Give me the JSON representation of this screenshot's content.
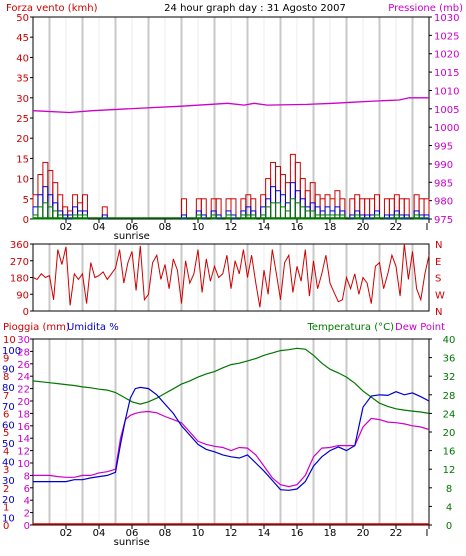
{
  "colors": {
    "wind": "#d00000",
    "pressure": "#cc00cc",
    "humidity": "#0000cc",
    "temperature": "#007700",
    "dewpoint": "#cc00cc",
    "rain": "#d00000",
    "grid_day": "#c8c8c8",
    "axis": "#000000"
  },
  "header": {
    "left_label": "Forza vento (kmh)",
    "title": "24 hour graph day : 31 Agosto 2007",
    "right_label": "Pressione (mb)"
  },
  "x_axis": {
    "tick_labels": [
      "02",
      "04",
      "06",
      "08",
      "10",
      "12",
      "14",
      "16",
      "18",
      "20",
      "22",
      "I"
    ],
    "sunrise_label": "sunrise",
    "sunrise_hour": 5.5
  },
  "chart_data": [
    {
      "type": "line",
      "panel": "wind-pressure",
      "y_ticks_left": [
        0,
        5,
        10,
        15,
        20,
        25,
        30,
        35,
        40,
        45,
        50
      ],
      "y_ticks_right": [
        975,
        980,
        985,
        990,
        995,
        1000,
        1005,
        1010,
        1015,
        1020,
        1025,
        1030
      ],
      "ylim_left": [
        0,
        50
      ],
      "ylim_right": [
        975,
        1030
      ],
      "pressure": {
        "hours": [
          0,
          2.2,
          3.6,
          6.6,
          9.0,
          11.8,
          12.8,
          13.4,
          14.2,
          16.6,
          18.2,
          19.4,
          20.2,
          21.2,
          22.2,
          22.8,
          24
        ],
        "values": [
          1004.5,
          1004.0,
          1004.5,
          1005.2,
          1005.7,
          1006.5,
          1006.0,
          1006.5,
          1006.0,
          1006.2,
          1006.5,
          1006.8,
          1007.0,
          1007.2,
          1007.4,
          1008.0,
          1008.0
        ]
      },
      "wind_gust": {
        "hours": [
          0.0,
          0.3,
          0.6,
          0.9,
          1.2,
          1.5,
          1.8,
          2.1,
          2.4,
          2.7,
          3.0,
          3.3,
          3.6,
          3.9,
          4.2,
          4.5,
          4.8,
          5.1,
          5.4,
          5.7,
          6.0,
          6.3,
          6.6,
          6.9,
          7.2,
          7.5,
          7.8,
          8.1,
          8.4,
          8.7,
          9.0,
          9.3,
          9.6,
          9.9,
          10.2,
          10.5,
          10.8,
          11.1,
          11.4,
          11.7,
          12.0,
          12.3,
          12.6,
          12.9,
          13.2,
          13.5,
          13.8,
          14.1,
          14.4,
          14.7,
          15.0,
          15.3,
          15.6,
          15.9,
          16.2,
          16.5,
          16.8,
          17.1,
          17.4,
          17.7,
          18.0,
          18.3,
          18.6,
          18.9,
          19.2,
          19.5,
          19.8,
          20.1,
          20.4,
          20.7,
          21.0,
          21.3,
          21.6,
          21.9,
          22.2,
          22.5,
          22.8,
          23.1,
          23.4,
          23.7
        ],
        "values": [
          6,
          11,
          14,
          12,
          9,
          6,
          3,
          2,
          6,
          4,
          6,
          0,
          0,
          0,
          3,
          0,
          0,
          0,
          0,
          0,
          0,
          0,
          0,
          0,
          0,
          0,
          0,
          0,
          0,
          0,
          5,
          0,
          0,
          5,
          5,
          0,
          5,
          5,
          0,
          5,
          5,
          0,
          5,
          6,
          5,
          0,
          6,
          10,
          14,
          13,
          11,
          9,
          16,
          14,
          10,
          7,
          9,
          6,
          5,
          6,
          5,
          7,
          5,
          0,
          5,
          6,
          5,
          5,
          5,
          6,
          0,
          5,
          5,
          6,
          5,
          5,
          0,
          6,
          5,
          5
        ]
      },
      "wind_avg": {
        "hours": [
          0.0,
          0.3,
          0.6,
          0.9,
          1.2,
          1.5,
          1.8,
          2.1,
          2.4,
          2.7,
          3.0,
          3.3,
          3.6,
          3.9,
          4.2,
          4.5,
          4.8,
          5.1,
          5.4,
          5.7,
          6.0,
          6.3,
          6.6,
          6.9,
          7.2,
          7.5,
          7.8,
          8.1,
          8.4,
          8.7,
          9.0,
          9.3,
          9.6,
          9.9,
          10.2,
          10.5,
          10.8,
          11.1,
          11.4,
          11.7,
          12.0,
          12.3,
          12.6,
          12.9,
          13.2,
          13.5,
          13.8,
          14.1,
          14.4,
          14.7,
          15.0,
          15.3,
          15.6,
          15.9,
          16.2,
          16.5,
          16.8,
          17.1,
          17.4,
          17.7,
          18.0,
          18.3,
          18.6,
          18.9,
          19.2,
          19.5,
          19.8,
          20.1,
          20.4,
          20.7,
          21.0,
          21.3,
          21.6,
          21.9,
          22.2,
          22.5,
          22.8,
          23.1,
          23.4,
          23.7
        ],
        "values": [
          3,
          6,
          8,
          6,
          4,
          2,
          1,
          1,
          3,
          2,
          2,
          0,
          0,
          0,
          1,
          0,
          0,
          0,
          0,
          0,
          0,
          0,
          0,
          0,
          0,
          0,
          0,
          0,
          0,
          0,
          1,
          0,
          0,
          2,
          1,
          0,
          2,
          1,
          0,
          2,
          1,
          0,
          2,
          3,
          2,
          0,
          3,
          5,
          8,
          7,
          6,
          4,
          9,
          7,
          5,
          3,
          4,
          3,
          2,
          3,
          2,
          3,
          2,
          0,
          1,
          2,
          1,
          1,
          1,
          2,
          0,
          1,
          1,
          2,
          1,
          1,
          0,
          2,
          1,
          1
        ]
      },
      "wind_lull": {
        "hours": [
          0.0,
          0.3,
          0.6,
          0.9,
          1.2,
          1.5,
          1.8,
          2.1,
          2.4,
          2.7,
          3.0,
          3.3,
          3.6,
          3.9,
          4.2,
          4.5,
          4.8,
          5.1,
          5.4,
          5.7,
          6.0,
          6.3,
          6.6,
          6.9,
          7.2,
          7.5,
          7.8,
          8.1,
          8.4,
          8.7,
          9.0,
          9.3,
          9.6,
          9.9,
          10.2,
          10.5,
          10.8,
          11.1,
          11.4,
          11.7,
          12.0,
          12.3,
          12.6,
          12.9,
          13.2,
          13.5,
          13.8,
          14.1,
          14.4,
          14.7,
          15.0,
          15.3,
          15.6,
          15.9,
          16.2,
          16.5,
          16.8,
          17.1,
          17.4,
          17.7,
          18.0,
          18.3,
          18.6,
          18.9,
          19.2,
          19.5,
          19.8,
          20.1,
          20.4,
          20.7,
          21.0,
          21.3,
          21.6,
          21.9,
          22.2,
          22.5,
          22.8,
          23.1,
          23.4,
          23.7
        ],
        "values": [
          1,
          3,
          4,
          3,
          2,
          1,
          0,
          0,
          1,
          1,
          1,
          0,
          0,
          0,
          0,
          0,
          0,
          0,
          0,
          0,
          0,
          0,
          0,
          0,
          0,
          0,
          0,
          0,
          0,
          0,
          0,
          0,
          0,
          1,
          0,
          0,
          1,
          0,
          0,
          1,
          0,
          0,
          1,
          1,
          1,
          0,
          1,
          3,
          4,
          4,
          3,
          2,
          5,
          4,
          3,
          2,
          2,
          1,
          1,
          1,
          1,
          1,
          1,
          0,
          0,
          1,
          0,
          0,
          0,
          1,
          0,
          0,
          0,
          1,
          0,
          0,
          0,
          1,
          0,
          0
        ]
      }
    },
    {
      "type": "line",
      "panel": "wind-direction",
      "y_ticks_left": [
        0,
        90,
        180,
        270,
        360
      ],
      "y_ticks_right": [
        "N",
        "W",
        "S",
        "E",
        "N"
      ],
      "ylim": [
        0,
        360
      ],
      "direction": {
        "hours": [
          0.0,
          0.25,
          0.5,
          0.75,
          1.0,
          1.25,
          1.5,
          1.75,
          2.0,
          2.25,
          2.5,
          2.75,
          3.0,
          3.25,
          3.5,
          3.75,
          4.0,
          4.25,
          4.5,
          4.75,
          5.0,
          5.25,
          5.5,
          5.75,
          6.0,
          6.25,
          6.5,
          6.75,
          7.0,
          7.25,
          7.5,
          7.75,
          8.0,
          8.25,
          8.5,
          8.75,
          9.0,
          9.25,
          9.5,
          9.75,
          10.0,
          10.25,
          10.5,
          10.75,
          11.0,
          11.25,
          11.5,
          11.75,
          12.0,
          12.25,
          12.5,
          12.75,
          13.0,
          13.25,
          13.5,
          13.75,
          14.0,
          14.25,
          14.5,
          14.75,
          15.0,
          15.25,
          15.5,
          15.75,
          16.0,
          16.25,
          16.5,
          16.75,
          17.0,
          17.25,
          17.5,
          17.75,
          18.0,
          18.25,
          18.5,
          18.75,
          19.0,
          19.25,
          19.5,
          19.75,
          20.0,
          20.25,
          20.5,
          20.75,
          21.0,
          21.25,
          21.5,
          21.75,
          22.0,
          22.25,
          22.5,
          22.75,
          23.0,
          23.25,
          23.5,
          23.75,
          24.0
        ],
        "values": [
          180,
          170,
          200,
          180,
          190,
          60,
          330,
          250,
          345,
          30,
          200,
          170,
          200,
          40,
          260,
          180,
          190,
          210,
          170,
          200,
          230,
          330,
          150,
          260,
          320,
          110,
          350,
          60,
          90,
          260,
          300,
          170,
          250,
          120,
          280,
          220,
          40,
          270,
          150,
          200,
          330,
          100,
          280,
          160,
          240,
          180,
          200,
          300,
          120,
          270,
          200,
          330,
          180,
          300,
          150,
          20,
          220,
          90,
          330,
          200,
          60,
          260,
          300,
          100,
          240,
          160,
          330,
          80,
          270,
          120,
          200,
          300,
          150,
          100,
          50,
          60,
          180,
          120,
          200,
          90,
          180,
          150,
          40,
          240,
          260,
          120,
          200,
          300,
          240,
          80,
          360,
          170,
          320,
          120,
          60,
          200,
          300
        ]
      }
    },
    {
      "type": "line",
      "panel": "rain-humidity-temperature",
      "left_labels": [
        "Pioggia (mm)",
        "Umidita %"
      ],
      "right_labels": [
        "Temperatura (°C)",
        "Dew Point"
      ],
      "humidity_ticks": [
        10,
        20,
        30,
        40,
        50,
        60,
        70,
        80,
        90,
        100
      ],
      "rain_ticks": [
        0,
        1,
        2,
        3,
        4,
        5,
        6,
        7,
        8,
        9,
        10
      ],
      "y_ticks_left": [
        0,
        2,
        4,
        6,
        8,
        10,
        12,
        14,
        16,
        18,
        20,
        22,
        24,
        26,
        28,
        30
      ],
      "y_ticks_right": [
        0,
        4,
        8,
        12,
        16,
        20,
        24,
        28,
        32,
        36,
        40
      ],
      "ylim_left": [
        0,
        30
      ],
      "ylim_right": [
        0,
        40
      ],
      "humidity": {
        "hours": [
          0,
          0.5,
          1,
          1.5,
          2,
          2.5,
          3,
          3.5,
          4,
          4.5,
          5,
          5.3,
          5.6,
          5.9,
          6.2,
          6.5,
          7,
          7.5,
          8,
          8.5,
          9,
          9.5,
          10,
          10.5,
          11,
          11.5,
          12,
          12.5,
          13,
          13.5,
          14,
          14.5,
          15,
          15.5,
          16,
          16.5,
          17,
          17.5,
          18,
          18.5,
          19,
          19.5,
          20,
          20.5,
          21,
          21.5,
          22,
          22.5,
          23,
          23.5,
          24
        ],
        "values": [
          7,
          7,
          7,
          7,
          7,
          7.3,
          7.3,
          7.6,
          7.8,
          8,
          8.5,
          13,
          17,
          20.5,
          22,
          22.2,
          22,
          21,
          19.5,
          18,
          16,
          14.5,
          13,
          12.2,
          11.8,
          11.3,
          11,
          10.8,
          11.3,
          10,
          8.7,
          7.2,
          5.7,
          5.6,
          5.8,
          7,
          9.5,
          11,
          12,
          12.6,
          12,
          12.8,
          19,
          20.8,
          21,
          20.9,
          21.5,
          21,
          21.3,
          20.7,
          20
        ]
      },
      "dew_point": {
        "hours": [
          0,
          0.5,
          1,
          1.5,
          2,
          2.5,
          3,
          3.5,
          4,
          4.5,
          5,
          5.3,
          5.6,
          5.9,
          6.2,
          6.5,
          7,
          7.5,
          8,
          8.5,
          9,
          9.5,
          10,
          10.5,
          11,
          11.5,
          12,
          12.5,
          13,
          13.5,
          14,
          14.5,
          15,
          15.5,
          16,
          16.5,
          17,
          17.5,
          18,
          18.5,
          19,
          19.5,
          20,
          20.5,
          21,
          21.5,
          22,
          22.5,
          23,
          23.5,
          24
        ],
        "values": [
          8,
          8,
          8,
          7.8,
          7.7,
          7.7,
          8,
          8,
          8.4,
          8.6,
          9,
          14,
          17,
          17.7,
          18,
          18.2,
          18.3,
          18.1,
          17.5,
          17,
          16.5,
          15,
          13.5,
          13,
          12.7,
          12.5,
          12,
          12.5,
          12.4,
          11.3,
          9.5,
          7.6,
          6.5,
          6.2,
          6.5,
          8,
          11,
          12.4,
          12.5,
          12.8,
          12.8,
          12.8,
          15.8,
          17.2,
          17,
          16.6,
          16.5,
          16.3,
          16,
          15.8,
          15.4
        ]
      },
      "temperature": {
        "hours": [
          0,
          0.5,
          1,
          1.5,
          2,
          2.5,
          3,
          3.5,
          4,
          4.5,
          5,
          5.5,
          6,
          6.5,
          7,
          7.5,
          8,
          8.5,
          9,
          9.5,
          10,
          10.5,
          11,
          11.5,
          12,
          12.5,
          13,
          13.5,
          14,
          14.5,
          15,
          15.5,
          16,
          16.5,
          17,
          17.5,
          18,
          18.5,
          19,
          19.5,
          20,
          20.5,
          21,
          21.5,
          22,
          22.5,
          23,
          23.5,
          24
        ],
        "values": [
          31,
          30.8,
          30.6,
          30.4,
          30.2,
          30,
          29.7,
          29.5,
          29.2,
          29,
          28.5,
          27.5,
          26.5,
          26,
          26.5,
          27.3,
          28.3,
          29.3,
          30.3,
          31,
          31.8,
          32.5,
          33,
          33.8,
          34.5,
          34.8,
          35.3,
          35.8,
          36.5,
          37,
          37.5,
          37.7,
          38,
          37.8,
          36.5,
          34.8,
          33.5,
          32.7,
          31.8,
          30.5,
          28.8,
          27.5,
          26.2,
          25.5,
          25,
          24.7,
          24.5,
          24.3,
          24
        ]
      },
      "rain": {
        "hours": [
          0,
          24
        ],
        "values": [
          0,
          0
        ]
      }
    }
  ]
}
